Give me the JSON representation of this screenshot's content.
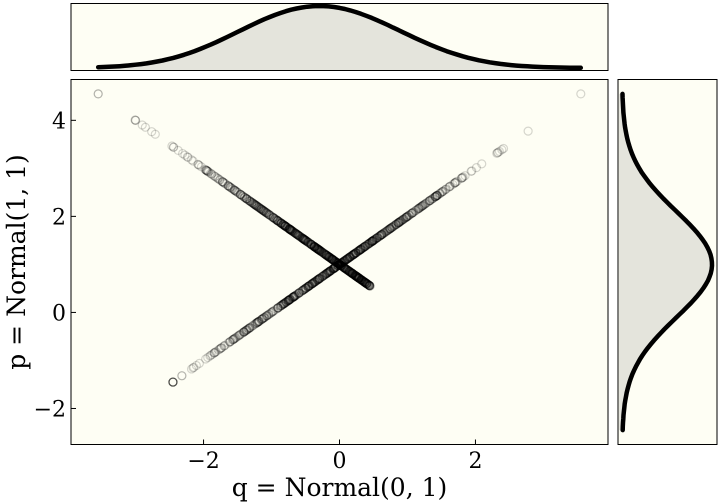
{
  "chart_data": {
    "type": "scatter",
    "xlabel": "q = Normal(0, 1)",
    "ylabel": "p = Normal(1, 1)",
    "xlim": [
      -3.95,
      3.95
    ],
    "ylim": [
      -2.75,
      4.85
    ],
    "xticks": [
      -2,
      0,
      2
    ],
    "yticks": [
      -2,
      0,
      2,
      4
    ],
    "xtick_labels": [
      "−2",
      "0",
      "2"
    ],
    "ytick_labels": [
      "−2",
      "0",
      "2",
      "4"
    ],
    "series": [
      {
        "relation": "p = 1 + q",
        "x_range": [
          -2.45,
          3.55
        ],
        "values": []
      },
      {
        "relation": "p = 1 - q",
        "x_range": [
          -3.55,
          0.45
        ],
        "values": []
      }
    ],
    "marginal_x": {
      "type": "kde",
      "peak_x": -0.1,
      "range": [
        -3.55,
        3.55
      ]
    },
    "marginal_y": {
      "type": "kde",
      "peak_y": 1.0,
      "range": [
        -2.45,
        4.55
      ]
    },
    "grid": false,
    "colors": {
      "panel_bg": "#fefef4",
      "kde_fill": "#e4e4dc",
      "line": "#000000"
    }
  }
}
